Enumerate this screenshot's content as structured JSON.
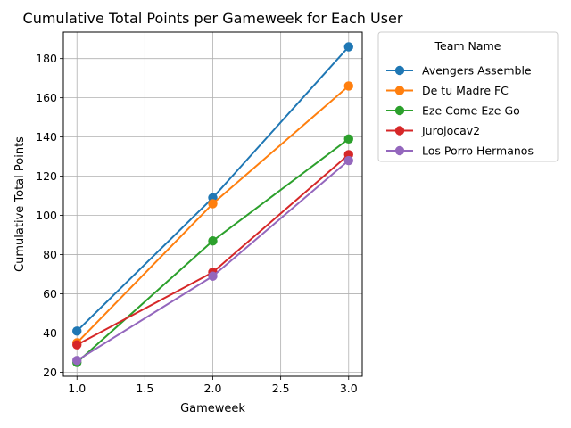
{
  "chart_data": {
    "type": "line",
    "title": "Cumulative Total Points per Gameweek for Each User",
    "xlabel": "Gameweek",
    "ylabel": "Cumulative Total Points",
    "x": [
      1.0,
      2.0,
      3.0
    ],
    "xlim": [
      0.9,
      3.1
    ],
    "ylim": [
      17.95,
      193.5
    ],
    "xticks": [
      "1.0",
      "1.5",
      "2.0",
      "2.5",
      "3.0"
    ],
    "yticks": [
      "20",
      "40",
      "60",
      "80",
      "100",
      "120",
      "140",
      "160",
      "180"
    ],
    "grid": true,
    "legend_title": "Team Name",
    "legend_position": "outside upper right",
    "series": [
      {
        "name": "Avengers Assemble",
        "color": "#1f77b4",
        "values": [
          41,
          109,
          186
        ]
      },
      {
        "name": "De tu Madre FC",
        "color": "#ff7f0e",
        "values": [
          35,
          106,
          166
        ]
      },
      {
        "name": "Eze Come Eze Go",
        "color": "#2ca02c",
        "values": [
          25,
          87,
          139
        ]
      },
      {
        "name": "Jurojocav2",
        "color": "#d62728",
        "values": [
          34,
          71,
          131
        ]
      },
      {
        "name": "Los Porro Hermanos",
        "color": "#9467bd",
        "values": [
          26,
          69,
          128
        ]
      }
    ]
  }
}
